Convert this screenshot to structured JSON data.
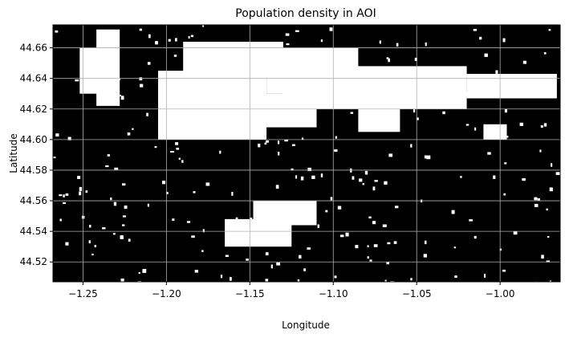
{
  "chart_data": {
    "type": "heatmap",
    "title": "Population density in AOI",
    "xlabel": "Longitude",
    "ylabel": "Latitude",
    "xlim": [
      -1.268,
      -0.964
    ],
    "ylim": [
      44.507,
      44.675
    ],
    "xticks": [
      -1.25,
      -1.2,
      -1.15,
      -1.1,
      -1.05,
      -1.0
    ],
    "xtick_labels": [
      "−1.25",
      "−1.20",
      "−1.15",
      "−1.10",
      "−1.05",
      "−1.00"
    ],
    "yticks": [
      44.52,
      44.54,
      44.56,
      44.58,
      44.6,
      44.62,
      44.64,
      44.66
    ],
    "ytick_labels": [
      "44.52",
      "44.54",
      "44.56",
      "44.58",
      "44.60",
      "44.62",
      "44.64",
      "44.66"
    ],
    "grid": true,
    "colormap": "binary (black = low, white = populated)",
    "background_color": "#000000",
    "populated_color": "#ffffff",
    "grid_color": "#b0b0b0",
    "populated_areas": [
      {
        "lon": [
          -1.242,
          -1.228
        ],
        "lat": [
          44.622,
          44.672
        ]
      },
      {
        "lon": [
          -1.252,
          -1.23
        ],
        "lat": [
          44.63,
          44.66
        ]
      },
      {
        "lon": [
          -1.205,
          -1.14
        ],
        "lat": [
          44.6,
          44.645
        ]
      },
      {
        "lon": [
          -1.19,
          -1.13
        ],
        "lat": [
          44.64,
          44.664
        ]
      },
      {
        "lon": [
          -1.14,
          -1.085
        ],
        "lat": [
          44.63,
          44.66
        ]
      },
      {
        "lon": [
          -1.13,
          -1.02
        ],
        "lat": [
          44.62,
          44.648
        ]
      },
      {
        "lon": [
          -1.02,
          -0.966
        ],
        "lat": [
          44.627,
          44.643
        ]
      },
      {
        "lon": [
          -1.15,
          -1.11
        ],
        "lat": [
          44.608,
          44.63
        ]
      },
      {
        "lon": [
          -1.085,
          -1.06
        ],
        "lat": [
          44.605,
          44.625
        ]
      },
      {
        "lon": [
          -1.165,
          -1.125
        ],
        "lat": [
          44.53,
          44.548
        ]
      },
      {
        "lon": [
          -1.148,
          -1.11
        ],
        "lat": [
          44.544,
          44.56
        ]
      },
      {
        "lon": [
          -1.01,
          -0.996
        ],
        "lat": [
          44.6,
          44.61
        ]
      }
    ]
  }
}
